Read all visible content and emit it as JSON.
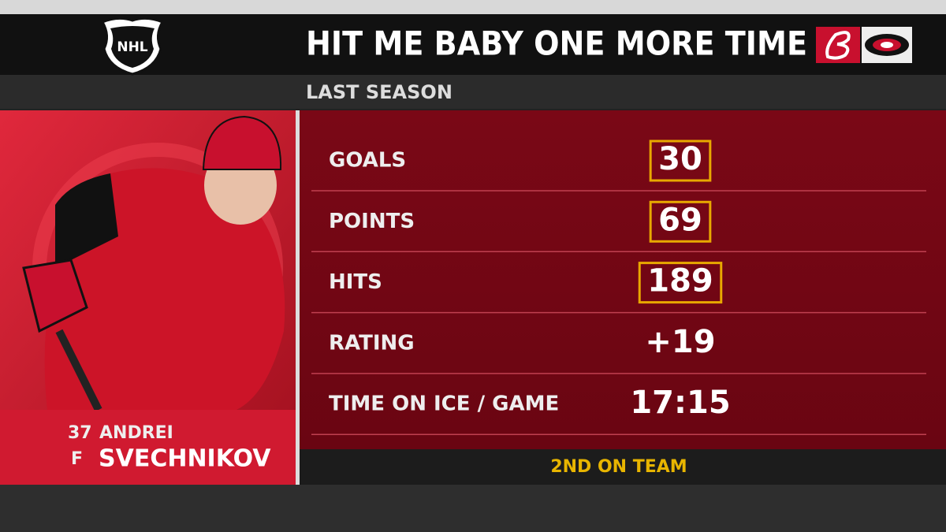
{
  "header": {
    "league_logo": "NHL",
    "title": "HIT ME BABY ONE MORE TIME",
    "subtitle": "LAST SEASON"
  },
  "player": {
    "number": "37",
    "first_name": "ANDREI",
    "position": "F",
    "last_name": "SVECHNIKOV"
  },
  "stats": [
    {
      "label": "GOALS",
      "value": "30",
      "highlight": true
    },
    {
      "label": "POINTS",
      "value": "69",
      "highlight": true
    },
    {
      "label": "HITS",
      "value": "189",
      "highlight": true
    },
    {
      "label": "RATING",
      "value": "+19",
      "highlight": false
    },
    {
      "label": "TIME ON ICE / GAME",
      "value": "17:15",
      "highlight": false
    }
  ],
  "footer": "2ND ON TEAM"
}
